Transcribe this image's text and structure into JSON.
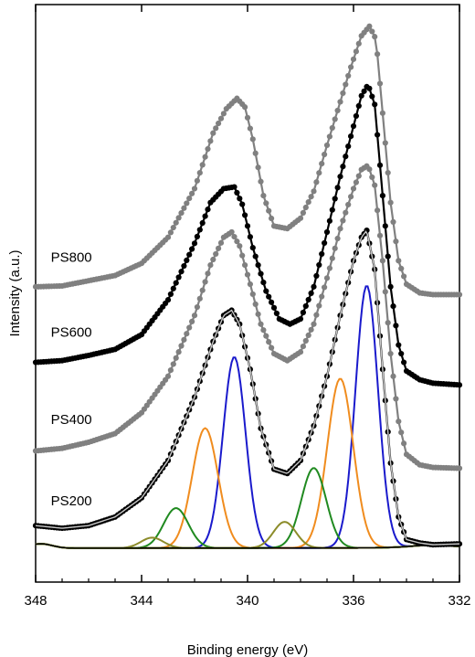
{
  "chart_data": {
    "type": "line",
    "xlabel": "Binding energy (eV)",
    "ylabel": "Intensity (a.u.)",
    "xlim": [
      348,
      332
    ],
    "x_reversed": true,
    "ylim": [
      -0.35,
      6.3
    ],
    "y_ticks_shown": false,
    "x_ticks": [
      348,
      344,
      340,
      336,
      332
    ],
    "x_tick_labels": [
      "348",
      "344",
      "340",
      "336",
      "332"
    ],
    "grid": false,
    "legend": "none",
    "data_style": "markers with connecting line",
    "series": [
      {
        "name": "PS800",
        "color": "#808080",
        "label_at_x": 346.6,
        "points": [
          [
            348,
            3.05
          ],
          [
            347,
            3.06
          ],
          [
            346,
            3.12
          ],
          [
            345,
            3.18
          ],
          [
            344,
            3.32
          ],
          [
            343,
            3.62
          ],
          [
            342,
            4.18
          ],
          [
            341.3,
            4.82
          ],
          [
            340.8,
            5.1
          ],
          [
            340.4,
            5.22
          ],
          [
            340.1,
            5.12
          ],
          [
            339.8,
            4.75
          ],
          [
            339.4,
            4.1
          ],
          [
            339,
            3.75
          ],
          [
            338.5,
            3.72
          ],
          [
            338,
            3.84
          ],
          [
            337.5,
            4.15
          ],
          [
            337,
            4.68
          ],
          [
            336.5,
            5.18
          ],
          [
            336.1,
            5.58
          ],
          [
            335.7,
            5.94
          ],
          [
            335.4,
            6.05
          ],
          [
            335.15,
            5.9
          ],
          [
            334.9,
            5.05
          ],
          [
            334.6,
            4.02
          ],
          [
            334.3,
            3.35
          ],
          [
            334,
            3.08
          ],
          [
            333.5,
            2.98
          ],
          [
            333,
            2.96
          ],
          [
            332,
            2.96
          ]
        ]
      },
      {
        "name": "PS600",
        "color": "#000000",
        "label_at_x": 346.6,
        "points": [
          [
            348,
            2.18
          ],
          [
            347,
            2.2
          ],
          [
            346,
            2.26
          ],
          [
            345,
            2.33
          ],
          [
            344,
            2.5
          ],
          [
            343,
            2.9
          ],
          [
            342,
            3.55
          ],
          [
            341.4,
            4.02
          ],
          [
            340.9,
            4.18
          ],
          [
            340.5,
            4.2
          ],
          [
            340.2,
            4.0
          ],
          [
            339.8,
            3.5
          ],
          [
            339.3,
            3.0
          ],
          [
            338.8,
            2.68
          ],
          [
            338.4,
            2.62
          ],
          [
            338,
            2.68
          ],
          [
            337.5,
            3.05
          ],
          [
            337,
            3.68
          ],
          [
            336.5,
            4.32
          ],
          [
            336,
            4.9
          ],
          [
            335.7,
            5.25
          ],
          [
            335.45,
            5.38
          ],
          [
            335.2,
            5.15
          ],
          [
            334.9,
            4.1
          ],
          [
            334.6,
            3.05
          ],
          [
            334.3,
            2.38
          ],
          [
            334,
            2.08
          ],
          [
            333.5,
            1.98
          ],
          [
            333,
            1.94
          ],
          [
            332,
            1.92
          ]
        ]
      },
      {
        "name": "PS400",
        "color": "#808080",
        "label_at_x": 346.6,
        "points": [
          [
            348,
            1.16
          ],
          [
            347,
            1.19
          ],
          [
            346,
            1.26
          ],
          [
            345,
            1.36
          ],
          [
            344,
            1.6
          ],
          [
            343,
            2.02
          ],
          [
            342,
            2.72
          ],
          [
            341.4,
            3.3
          ],
          [
            340.9,
            3.62
          ],
          [
            340.6,
            3.68
          ],
          [
            340.3,
            3.52
          ],
          [
            339.9,
            3.08
          ],
          [
            339.5,
            2.62
          ],
          [
            339,
            2.28
          ],
          [
            338.5,
            2.2
          ],
          [
            338,
            2.3
          ],
          [
            337.5,
            2.62
          ],
          [
            337,
            3.15
          ],
          [
            336.5,
            3.72
          ],
          [
            336,
            4.18
          ],
          [
            335.7,
            4.4
          ],
          [
            335.45,
            4.45
          ],
          [
            335.2,
            4.22
          ],
          [
            334.9,
            3.35
          ],
          [
            334.6,
            2.28
          ],
          [
            334.3,
            1.5
          ],
          [
            334,
            1.12
          ],
          [
            333.5,
            1.0
          ],
          [
            333,
            0.97
          ],
          [
            332,
            0.96
          ]
        ]
      },
      {
        "name": "PS200",
        "color": "#000000",
        "label_at_x": 346.6,
        "points": [
          [
            348,
            0.3
          ],
          [
            347,
            0.27
          ],
          [
            346,
            0.3
          ],
          [
            345,
            0.4
          ],
          [
            344,
            0.62
          ],
          [
            343,
            1.05
          ],
          [
            342,
            1.78
          ],
          [
            341.3,
            2.42
          ],
          [
            340.9,
            2.72
          ],
          [
            340.6,
            2.78
          ],
          [
            340.3,
            2.62
          ],
          [
            339.9,
            2.1
          ],
          [
            339.5,
            1.42
          ],
          [
            339,
            0.95
          ],
          [
            338.5,
            0.9
          ],
          [
            338,
            1.05
          ],
          [
            337.5,
            1.45
          ],
          [
            337,
            2.02
          ],
          [
            336.5,
            2.72
          ],
          [
            336,
            3.35
          ],
          [
            335.7,
            3.62
          ],
          [
            335.5,
            3.7
          ],
          [
            335.2,
            3.25
          ],
          [
            334.9,
            2.1
          ],
          [
            334.6,
            1.02
          ],
          [
            334.3,
            0.4
          ],
          [
            334,
            0.14
          ],
          [
            333.5,
            0.1
          ],
          [
            333,
            0.08
          ],
          [
            332,
            0.09
          ]
        ]
      }
    ],
    "fit_components": [
      {
        "color": "#1a1acc",
        "center": 340.5,
        "height": 2.2,
        "fwhm": 1.0
      },
      {
        "color": "#f08c1e",
        "center": 341.6,
        "height": 1.38,
        "fwhm": 1.15
      },
      {
        "color": "#208a20",
        "center": 342.7,
        "height": 0.46,
        "fwhm": 1.1
      },
      {
        "color": "#8c8c2a",
        "center": 343.6,
        "height": 0.12,
        "fwhm": 1.0
      },
      {
        "color": "#1a1acc",
        "center": 335.5,
        "height": 3.02,
        "fwhm": 1.0
      },
      {
        "color": "#f08c1e",
        "center": 336.5,
        "height": 1.95,
        "fwhm": 1.15
      },
      {
        "color": "#208a20",
        "center": 337.5,
        "height": 0.92,
        "fwhm": 1.1
      },
      {
        "color": "#8c8c2a",
        "center": 338.6,
        "height": 0.3,
        "fwhm": 1.0
      }
    ],
    "envelope_color": "#c8c8c8",
    "baseline_color": "#000000"
  }
}
